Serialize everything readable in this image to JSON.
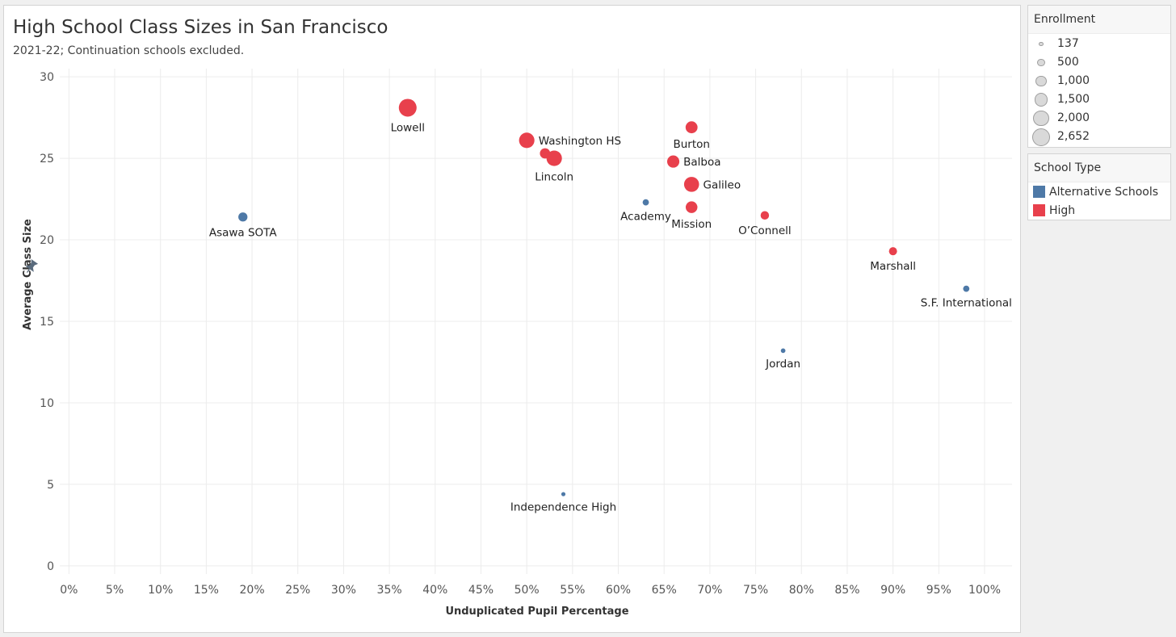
{
  "chart_data": {
    "type": "scatter",
    "title": "High School Class Sizes in San Francisco",
    "subtitle": "2021-22; Continuation schools excluded.",
    "xlabel": "Unduplicated Pupil Percentage",
    "ylabel": "Average Class Size",
    "xlim": [
      -1,
      103
    ],
    "ylim": [
      -0.5,
      30.5
    ],
    "xticks": [
      0,
      5,
      10,
      15,
      20,
      25,
      30,
      35,
      40,
      45,
      50,
      55,
      60,
      65,
      70,
      75,
      80,
      85,
      90,
      95,
      100
    ],
    "xtick_labels": [
      "0%",
      "5%",
      "10%",
      "15%",
      "20%",
      "25%",
      "30%",
      "35%",
      "40%",
      "45%",
      "50%",
      "55%",
      "60%",
      "65%",
      "70%",
      "75%",
      "80%",
      "85%",
      "90%",
      "95%",
      "100%"
    ],
    "yticks": [
      0,
      5,
      10,
      15,
      20,
      25,
      30
    ],
    "ytick_labels": [
      "0",
      "5",
      "10",
      "15",
      "20",
      "25",
      "30"
    ],
    "colors": {
      "Alternative Schools": "#4e79a7",
      "High": "#e8404c"
    },
    "points": [
      {
        "name": "Lowell",
        "x": 37,
        "y": 28.1,
        "enrollment": 2652,
        "type": "High",
        "label": "Lowell",
        "label_pos": "below"
      },
      {
        "name": "Washington HS",
        "x": 50,
        "y": 26.1,
        "enrollment": 2000,
        "type": "High",
        "label": "Washington HS",
        "label_pos": "right"
      },
      {
        "name": "Unlabeled",
        "x": 52,
        "y": 25.3,
        "enrollment": 900,
        "type": "High",
        "label": "",
        "label_pos": "none"
      },
      {
        "name": "Lincoln",
        "x": 53,
        "y": 25.0,
        "enrollment": 2000,
        "type": "High",
        "label": "Lincoln",
        "label_pos": "below"
      },
      {
        "name": "Burton",
        "x": 68,
        "y": 26.9,
        "enrollment": 1200,
        "type": "High",
        "label": "Burton",
        "label_pos": "below"
      },
      {
        "name": "Balboa",
        "x": 66,
        "y": 24.8,
        "enrollment": 1250,
        "type": "High",
        "label": "Balboa",
        "label_pos": "right"
      },
      {
        "name": "Galileo",
        "x": 68,
        "y": 23.4,
        "enrollment": 1900,
        "type": "High",
        "label": "Galileo",
        "label_pos": "right"
      },
      {
        "name": "Mission",
        "x": 68,
        "y": 22.0,
        "enrollment": 1150,
        "type": "High",
        "label": "Mission",
        "label_pos": "below"
      },
      {
        "name": "O’Connell",
        "x": 76,
        "y": 21.5,
        "enrollment": 600,
        "type": "High",
        "label": "O’Connell",
        "label_pos": "below"
      },
      {
        "name": "Marshall",
        "x": 90,
        "y": 19.3,
        "enrollment": 550,
        "type": "High",
        "label": "Marshall",
        "label_pos": "below"
      },
      {
        "name": "Asawa SOTA",
        "x": 19,
        "y": 21.4,
        "enrollment": 700,
        "type": "Alternative Schools",
        "label": "Asawa SOTA",
        "label_pos": "below"
      },
      {
        "name": "Academy",
        "x": 63,
        "y": 22.3,
        "enrollment": 330,
        "type": "Alternative Schools",
        "label": "Academy",
        "label_pos": "below"
      },
      {
        "name": "S.F. International",
        "x": 98,
        "y": 17.0,
        "enrollment": 330,
        "type": "Alternative Schools",
        "label": "S.F. International",
        "label_pos": "below"
      },
      {
        "name": "Jordan",
        "x": 78,
        "y": 13.2,
        "enrollment": 180,
        "type": "Alternative Schools",
        "label": "Jordan",
        "label_pos": "below"
      },
      {
        "name": "Independence High",
        "x": 54,
        "y": 4.4,
        "enrollment": 137,
        "type": "Alternative Schools",
        "label": "Independence High",
        "label_pos": "below"
      }
    ]
  },
  "legend": {
    "enrollment": {
      "title": "Enrollment",
      "items": [
        {
          "value": 137,
          "label": "137"
        },
        {
          "value": 500,
          "label": "500"
        },
        {
          "value": 1000,
          "label": "1,000"
        },
        {
          "value": 1500,
          "label": "1,500"
        },
        {
          "value": 2000,
          "label": "2,000"
        },
        {
          "value": 2652,
          "label": "2,652"
        }
      ]
    },
    "school_type": {
      "title": "School Type",
      "items": [
        {
          "label": "Alternative Schools",
          "color": "#4e79a7"
        },
        {
          "label": "High",
          "color": "#e8404c"
        }
      ]
    }
  },
  "icons": {
    "axis_pin": "pin-icon"
  }
}
